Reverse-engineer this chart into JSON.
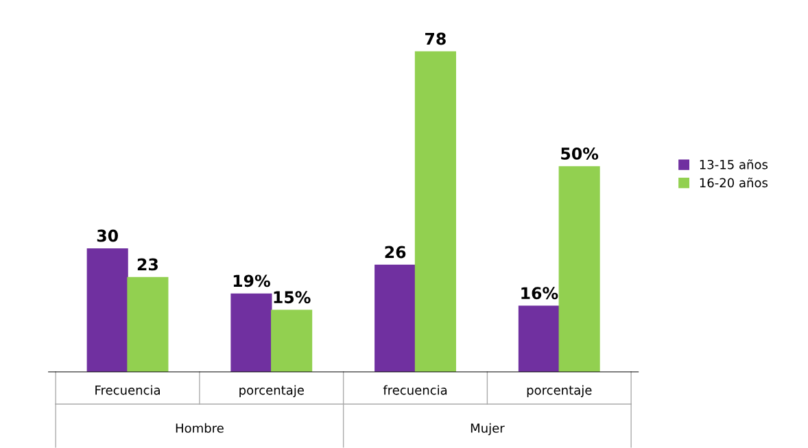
{
  "chart_data": {
    "type": "bar",
    "categories": [
      "Frecuencia",
      "porcentaje",
      "frecuencia",
      "porcentaje"
    ],
    "series": [
      {
        "name": "13-15 años",
        "color": "#7030a0",
        "values": [
          30,
          19,
          26,
          16
        ],
        "value_labels": [
          "30",
          "19%",
          "26",
          "16%"
        ]
      },
      {
        "name": "16-20 años",
        "color": "#92d050",
        "values": [
          23,
          15,
          78,
          50
        ],
        "value_labels": [
          "23",
          "15%",
          "78",
          "50%"
        ]
      }
    ],
    "annotations": [
      "Hombre",
      "Mujer"
    ],
    "legend": "right",
    "grid": false
  }
}
